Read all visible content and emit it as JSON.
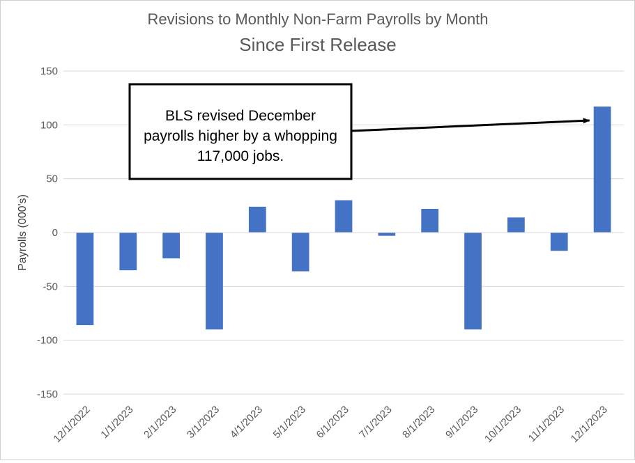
{
  "chart_data": {
    "type": "bar",
    "title": "Revisions to Monthly Non-Farm Payrolls by Month",
    "subtitle": "Since First Release",
    "xlabel": "",
    "ylabel": "Payrolls (000's)",
    "ylim": [
      -150,
      150
    ],
    "yticks": [
      150,
      100,
      50,
      0,
      -50,
      -100,
      -150
    ],
    "ytick_labels": [
      "150",
      "100",
      "50",
      "0",
      "-50",
      "-100",
      "-150"
    ],
    "grid": true,
    "legend": "none",
    "categories": [
      "12/1/2022",
      "1/1/2023",
      "2/1/2023",
      "3/1/2023",
      "4/1/2023",
      "5/1/2023",
      "6/1/2023",
      "7/1/2023",
      "8/1/2023",
      "9/1/2023",
      "10/1/2023",
      "11/1/2023",
      "12/1/2023"
    ],
    "values": [
      -86,
      -35,
      -24,
      -90,
      24,
      -36,
      30,
      -3,
      22,
      -90,
      14,
      -17,
      117
    ],
    "bar_color": "#4472C4",
    "annotation": {
      "lines": [
        "BLS revised December",
        "payrolls higher by a whopping",
        "117,000 jobs."
      ],
      "points_to_category": "12/1/2023"
    }
  }
}
